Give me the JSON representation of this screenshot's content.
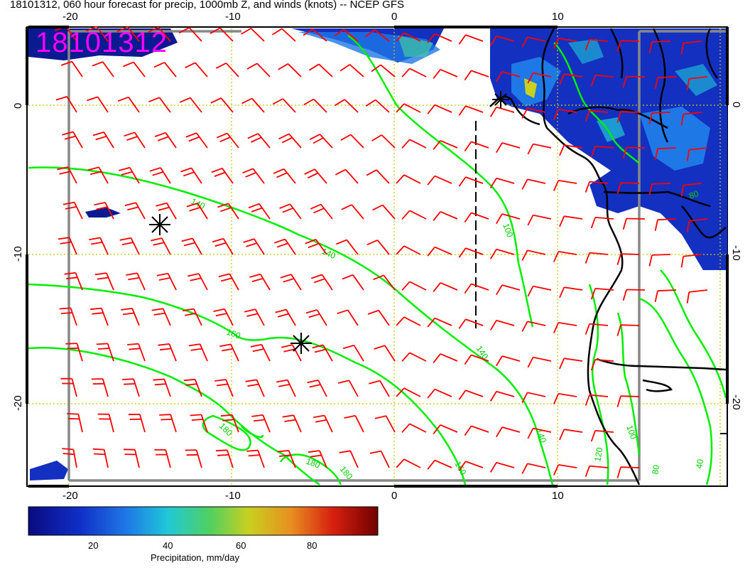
{
  "title": "18101312, 060 hour forecast for precip, 1000mb Z, and winds (knots) -- NCEP GFS",
  "stamp": "18101312",
  "axes": {
    "lon_ticks": [
      "-20",
      "-10",
      "0",
      "10"
    ],
    "lat_ticks": [
      "0",
      "-10",
      "-20"
    ]
  },
  "contour_labels": [
    "140",
    "140",
    "160",
    "180",
    "180",
    "180",
    "160",
    "140",
    "120",
    "100",
    "140",
    "100",
    "80",
    "40",
    "80"
  ],
  "colorbar": {
    "ticks": [
      "20",
      "40",
      "60",
      "80"
    ],
    "label": "Precipitation, mm/day",
    "colors": [
      "#0a0a80",
      "#1030c8",
      "#1e78e6",
      "#20c8d8",
      "#50d060",
      "#c8d020",
      "#e89020",
      "#d82010",
      "#700000"
    ]
  },
  "colors": {
    "precip_blue": "#1030c8",
    "wind_barb": "#ff0000",
    "contour": "#00ee00",
    "grid_line": "#c8c800",
    "stamp": "#ff00ff"
  }
}
